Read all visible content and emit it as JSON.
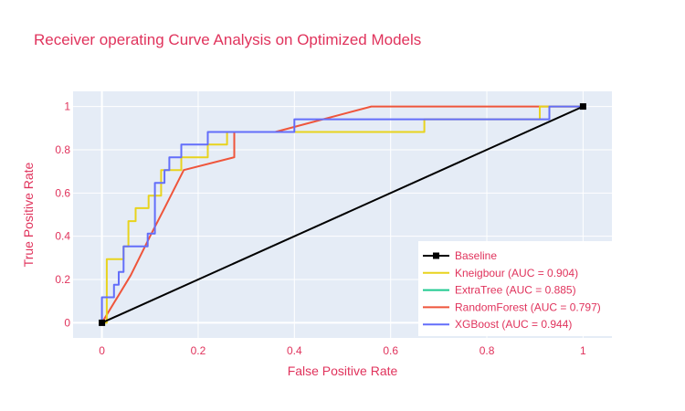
{
  "chart_data": {
    "type": "line",
    "title": "Receiver operating Curve Analysis on Optimized Models",
    "xlabel": "False Positive Rate",
    "ylabel": "True Positive Rate",
    "xlim": [
      -0.06,
      1.06
    ],
    "ylim": [
      -0.07,
      1.07
    ],
    "x_ticks": [
      0,
      0.2,
      0.4,
      0.6,
      0.8,
      1
    ],
    "x_tick_labels": [
      "0",
      "0.2",
      "0.4",
      "0.6",
      "0.8",
      "1"
    ],
    "y_ticks": [
      0,
      0.2,
      0.4,
      0.6,
      0.8,
      1
    ],
    "y_tick_labels": [
      "0",
      "0.2",
      "0.4",
      "0.6",
      "0.8",
      "1"
    ],
    "grid": true,
    "legend_position": "bottom-right",
    "series": [
      {
        "name": "Baseline",
        "color": "#000000",
        "marker": "square",
        "x": [
          0,
          1
        ],
        "y": [
          0,
          1
        ]
      },
      {
        "name": "Kneigbour (AUC = 0.904)",
        "color": "#e8d31d",
        "x": [
          0,
          0.01,
          0.01,
          0.045,
          0.045,
          0.055,
          0.055,
          0.07,
          0.07,
          0.097,
          0.097,
          0.123,
          0.123,
          0.165,
          0.165,
          0.22,
          0.22,
          0.26,
          0.26,
          0.67,
          0.67,
          0.91,
          0.91,
          1
        ],
        "y": [
          0,
          0,
          0.294,
          0.294,
          0.353,
          0.353,
          0.47,
          0.47,
          0.53,
          0.53,
          0.588,
          0.588,
          0.706,
          0.706,
          0.765,
          0.765,
          0.824,
          0.824,
          0.882,
          0.882,
          0.941,
          0.941,
          1,
          1
        ]
      },
      {
        "name": "ExtraTree (AUC = 0.885)",
        "color": "#1ec98f",
        "x": [],
        "y": []
      },
      {
        "name": "RandomForest (AUC = 0.797)",
        "color": "#ef553b",
        "x": [
          0,
          0.06,
          0.1,
          0.13,
          0.17,
          0.275,
          0.275,
          0.36,
          0.56,
          1
        ],
        "y": [
          0,
          0.22,
          0.4,
          0.53,
          0.706,
          0.765,
          0.882,
          0.882,
          1,
          1
        ]
      },
      {
        "name": "XGBoost (AUC = 0.944)",
        "color": "#636efa",
        "x": [
          0,
          0,
          0.025,
          0.025,
          0.035,
          0.035,
          0.045,
          0.045,
          0.055,
          0.055,
          0.095,
          0.095,
          0.11,
          0.11,
          0.13,
          0.13,
          0.14,
          0.14,
          0.165,
          0.165,
          0.22,
          0.22,
          0.4,
          0.4,
          0.91,
          0.91,
          0.93,
          0.93,
          1
        ],
        "y": [
          0,
          0.118,
          0.118,
          0.176,
          0.176,
          0.235,
          0.235,
          0.353,
          0.353,
          0.353,
          0.353,
          0.412,
          0.412,
          0.647,
          0.647,
          0.706,
          0.706,
          0.765,
          0.765,
          0.824,
          0.824,
          0.882,
          0.882,
          0.941,
          0.941,
          0.941,
          0.941,
          1,
          1
        ]
      }
    ]
  }
}
